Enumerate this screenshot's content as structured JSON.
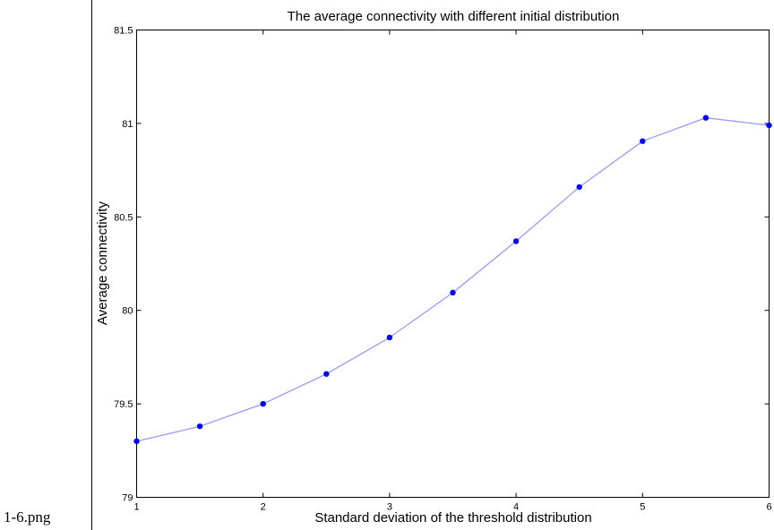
{
  "caption": "1-6.png",
  "chart_data": {
    "type": "line",
    "title": "The average connectivity with different initial distribution",
    "xlabel": "Standard deviation of the threshold distribution",
    "ylabel": "Average connectivity",
    "xlim": [
      1,
      6
    ],
    "ylim": [
      79,
      81.5
    ],
    "xticks": [
      1,
      2,
      3,
      4,
      5,
      6
    ],
    "xtick_labels": [
      "1",
      "2",
      "3",
      "4",
      "5",
      "6"
    ],
    "yticks": [
      79,
      79.5,
      80,
      80.5,
      81,
      81.5
    ],
    "ytick_labels": [
      "79",
      "79.5",
      "80",
      "80.5",
      "81",
      "81.5"
    ],
    "grid": false,
    "series": [
      {
        "x": [
          1,
          1.5,
          2,
          2.5,
          3,
          3.5,
          4,
          4.5,
          5,
          5.5,
          6
        ],
        "y": [
          79.3,
          79.38,
          79.5,
          79.66,
          79.855,
          80.095,
          80.37,
          80.66,
          80.905,
          81.03,
          80.99
        ],
        "line_color": "#9999ff",
        "marker_color": "#0000ff"
      }
    ]
  }
}
